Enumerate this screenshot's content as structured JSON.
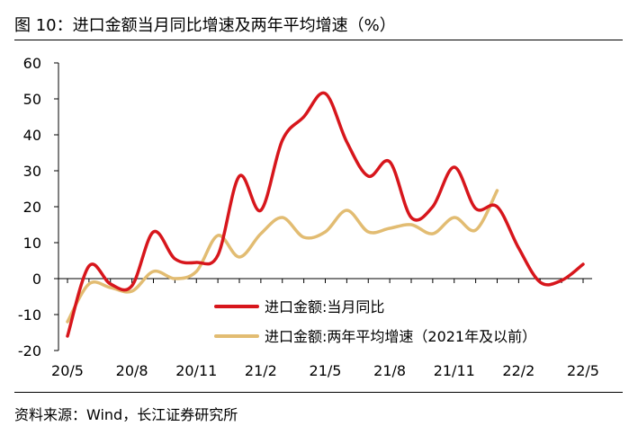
{
  "chart_data": {
    "type": "line",
    "title": "图 10：进口金额当月同比增速及两年平均增速（%）",
    "source": "资料来源：Wind，长江证券研究所",
    "x_tick_labels": [
      "20/5",
      "20/8",
      "20/11",
      "21/2",
      "21/5",
      "21/8",
      "21/11",
      "22/2",
      "22/5"
    ],
    "y_tick_labels": [
      "-20",
      "-10",
      "0",
      "10",
      "20",
      "30",
      "40",
      "50",
      "60"
    ],
    "ylim": [
      -20,
      60
    ],
    "x_range": [
      0,
      24
    ],
    "grid": false,
    "legend_position": "bottom-right",
    "series": [
      {
        "name": "进口金额:当月同比",
        "color": "#D7161C",
        "x": [
          0,
          1,
          2,
          3,
          4,
          5,
          6,
          7,
          8,
          9,
          10,
          11,
          12,
          13,
          14,
          15,
          16,
          17,
          18,
          19,
          20,
          21,
          22,
          23,
          24
        ],
        "values": [
          -16.0,
          3.5,
          -1.5,
          -2.0,
          13.0,
          5.5,
          4.5,
          6.5,
          28.5,
          19.0,
          38.5,
          45.0,
          51.5,
          38.0,
          28.5,
          32.5,
          17.0,
          20.0,
          31.0,
          19.5,
          20.0,
          8.5,
          -1.0,
          -0.5,
          4.0
        ]
      },
      {
        "name": "进口金额:两年平均增速（2021年及以前）",
        "color": "#E2BC72",
        "x": [
          0,
          1,
          2,
          3,
          4,
          5,
          6,
          7,
          8,
          9,
          10,
          11,
          12,
          13,
          14,
          15,
          16,
          17,
          18,
          19,
          20
        ],
        "values": [
          -12.0,
          -1.5,
          -2.5,
          -3.5,
          2.0,
          0.0,
          2.0,
          12.0,
          6.0,
          12.5,
          17.0,
          11.5,
          13.0,
          19.0,
          13.0,
          14.0,
          15.0,
          12.5,
          17.0,
          13.5,
          24.5
        ]
      }
    ]
  }
}
